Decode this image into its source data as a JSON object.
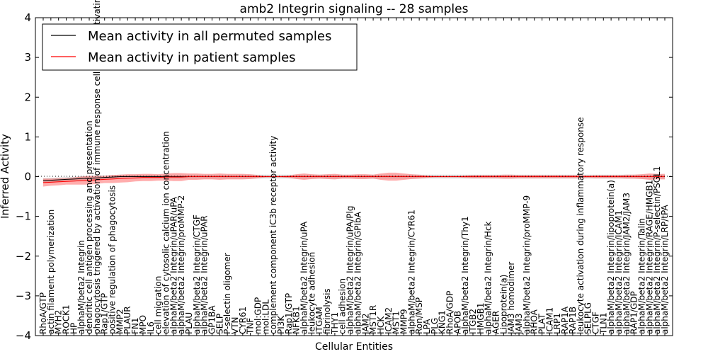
{
  "chart_data": {
    "type": "line",
    "title": "amb2 Integrin signaling -- 28 samples",
    "xlabel": "Cellular Entities",
    "ylabel": "Inferred Activity",
    "ylim": [
      -4,
      4
    ],
    "yticks": [
      -4,
      -3,
      -2,
      -1,
      0,
      1,
      2,
      3,
      4
    ],
    "legend_placement": "top-left",
    "categories": [
      "RhoA/GTP",
      "actin filament polymerization",
      "MYH2",
      "ROCK1",
      "HP",
      "alphaM/beta2 Integrin",
      "dendritic cell antigen processing and presentation",
      "phagocytosis triggered by activation of immune response cell surface activating receptor",
      "Rap1/GTP",
      "positive regulation of phagocytosis",
      "MMP2",
      "PLAUR",
      "FN1",
      "MPO",
      "IL6",
      "cell migration",
      "elevation of cytosolic calcium ion concentration",
      "alphaM/beta2 Integrin/uPAR/uPA",
      "alphaM/beta2 Integrin/proMMP-2",
      "PLAU",
      "alphaM/beta2 Integrin/CTGF",
      "alphaM/beta2 Integrin/uPAR",
      "GP1BA",
      "SELP",
      "P-selectin oligomer",
      "VTN",
      "CYR61",
      "TNF",
      "mol:GDP",
      "mol:LDL",
      "complement component iC3b receptor activity",
      "PI3K",
      "Rap1/GTP",
      "NFKB1",
      "alphaM/beta2 Integrin/uPA",
      "leukocyte adhesion",
      "ITGAM",
      "fibrinolysis",
      "THY1",
      "cell adhesion",
      "alphaM/beta2 Integrin/uPA/Plg",
      "alphaM/beta2 Integrin/GPIbA",
      "JAM2",
      "MST1R",
      "HCK",
      "ICAM2",
      "MST1",
      "MMP9",
      "alphaM/beta2 Integrin/CYR61",
      "Ron/MSP",
      "LPA",
      "PLG",
      "KNG1",
      "RhoA/GDP",
      "APOB",
      "alphaM/beta2 Integrin/Thy1",
      "ITGB2",
      "HMGB1",
      "alphaM/beta2 Integrin/Hck",
      "AGER",
      "Lipoprotein(a)",
      "JAM3 homodimer",
      "JAM3",
      "alphaM/beta2 Integrin/proMMP-9",
      "RHOA",
      "PLAT",
      "ICAM1",
      "LRP1",
      "RAP1A",
      "RAP1B",
      "leukocyte activation during inflammatory response",
      "SELPLG",
      "CTGF",
      "TLN1",
      "alphaM/beta2 Integrin/lipoprotein(a)",
      "alphaM/beta2 Integrin/ICAM1",
      "alphaM/beta2 Integrin/JAM2/JAM3",
      "RAP1/GDP",
      "alphaM/beta2 Integrin/Talin",
      "alphaM/beta2 Integrin/RAGE/HMGB1",
      "alphaM/beta2 Integrin/P-selectin/PSGL1",
      "alphaM/beta2 Integrin/LRP/tPA"
    ],
    "series": [
      {
        "name": "Mean activity in all permuted samples",
        "color": "#000000",
        "values": [
          -0.1,
          -0.09,
          -0.08,
          -0.07,
          -0.06,
          -0.05,
          -0.04,
          -0.03,
          -0.02,
          -0.01,
          0.0,
          0.0,
          0.0,
          0.0,
          0.0,
          0.0,
          0.0,
          0.0,
          0.0,
          0.0,
          0.0,
          0.0,
          0.0,
          0.0,
          0.0,
          0.0,
          0.0,
          0.0,
          0.0,
          0.0,
          0.0,
          0.0,
          0.0,
          0.0,
          0.0,
          0.0,
          0.0,
          0.0,
          0.0,
          0.0,
          0.0,
          0.0,
          0.0,
          0.0,
          0.0,
          0.0,
          0.0,
          0.0,
          0.0,
          0.0,
          0.0,
          0.0,
          0.0,
          0.0,
          0.0,
          0.0,
          0.0,
          0.0,
          0.0,
          0.0,
          0.0,
          0.0,
          0.0,
          0.0,
          0.0,
          0.0,
          0.0,
          0.0,
          0.0,
          0.0,
          0.0,
          0.0,
          0.0,
          0.0,
          0.0,
          0.0,
          0.0,
          0.0,
          0.0,
          0.0,
          0.0,
          0.0
        ],
        "band": [
          0.06,
          0.06,
          0.06,
          0.06,
          0.06,
          0.06,
          0.06,
          0.06,
          0.05,
          0.05,
          0.05,
          0.05,
          0.05,
          0.05,
          0.05,
          0.05,
          0.05,
          0.05,
          0.05,
          0.05,
          0.05,
          0.05,
          0.05,
          0.05,
          0.05,
          0.05,
          0.05,
          0.05,
          0.05,
          0.05,
          0.05,
          0.05,
          0.05,
          0.05,
          0.05,
          0.05,
          0.05,
          0.05,
          0.05,
          0.05,
          0.05,
          0.05,
          0.05,
          0.05,
          0.05,
          0.05,
          0.05,
          0.05,
          0.05,
          0.05,
          0.05,
          0.05,
          0.05,
          0.05,
          0.05,
          0.05,
          0.05,
          0.05,
          0.05,
          0.05,
          0.05,
          0.05,
          0.05,
          0.05,
          0.05,
          0.05,
          0.05,
          0.05,
          0.05,
          0.05,
          0.05,
          0.05,
          0.05,
          0.05,
          0.05,
          0.05,
          0.05,
          0.05,
          0.05,
          0.05,
          0.05,
          0.05
        ]
      },
      {
        "name": "Mean activity in patient samples",
        "color": "#ff0000",
        "values": [
          -0.15,
          -0.14,
          -0.13,
          -0.12,
          -0.11,
          -0.1,
          -0.09,
          -0.08,
          -0.07,
          -0.06,
          -0.05,
          -0.04,
          -0.03,
          -0.02,
          -0.02,
          -0.02,
          -0.01,
          -0.01,
          -0.01,
          0.0,
          0.0,
          0.0,
          0.0,
          0.0,
          0.0,
          0.0,
          0.0,
          0.0,
          0.0,
          0.0,
          0.0,
          0.0,
          0.0,
          0.0,
          0.0,
          0.0,
          0.0,
          0.0,
          0.0,
          0.0,
          0.0,
          0.0,
          0.0,
          0.0,
          0.0,
          0.0,
          0.0,
          0.0,
          0.0,
          0.0,
          0.0,
          0.0,
          0.0,
          0.0,
          0.0,
          0.0,
          0.0,
          0.0,
          0.0,
          0.0,
          0.0,
          0.0,
          0.0,
          0.0,
          0.0,
          0.0,
          0.0,
          0.0,
          0.0,
          0.0,
          0.0,
          0.0,
          0.0,
          0.0,
          0.0,
          0.0,
          0.0,
          0.0,
          0.0,
          0.0,
          0.0,
          0.0
        ],
        "band": [
          0.1,
          0.09,
          0.09,
          0.08,
          0.09,
          0.1,
          0.11,
          0.1,
          0.09,
          0.1,
          0.1,
          0.1,
          0.09,
          0.09,
          0.09,
          0.08,
          0.09,
          0.1,
          0.1,
          0.08,
          0.08,
          0.07,
          0.07,
          0.08,
          0.07,
          0.07,
          0.07,
          0.06,
          0.04,
          0.02,
          0.02,
          0.02,
          0.03,
          0.06,
          0.08,
          0.06,
          0.05,
          0.06,
          0.07,
          0.05,
          0.05,
          0.06,
          0.06,
          0.05,
          0.08,
          0.1,
          0.1,
          0.08,
          0.06,
          0.05,
          0.03,
          0.02,
          0.02,
          0.02,
          0.02,
          0.03,
          0.04,
          0.04,
          0.04,
          0.04,
          0.05,
          0.05,
          0.04,
          0.04,
          0.04,
          0.04,
          0.04,
          0.04,
          0.04,
          0.04,
          0.04,
          0.03,
          0.04,
          0.04,
          0.04,
          0.04,
          0.05,
          0.05,
          0.06,
          0.08,
          0.07,
          0.07
        ]
      }
    ]
  }
}
